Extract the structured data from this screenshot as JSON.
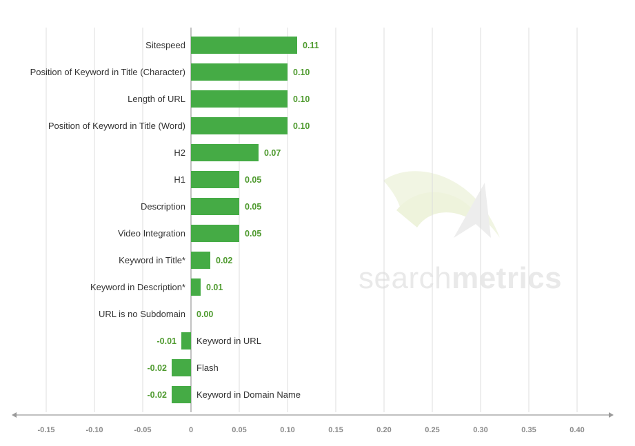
{
  "chart_data": {
    "type": "bar",
    "orientation": "horizontal",
    "categories": [
      "Sitespeed",
      "Position of Keyword in Title (Character)",
      "Length of URL",
      "Position of Keyword in Title (Word)",
      "H2",
      "H1",
      "Description",
      "Video Integration",
      "Keyword in Title*",
      "Keyword in Description*",
      "URL is no Subdomain",
      "Keyword in URL",
      "Flash",
      "Keyword in Domain Name"
    ],
    "values": [
      0.11,
      0.1,
      0.1,
      0.1,
      0.07,
      0.05,
      0.05,
      0.05,
      0.02,
      0.01,
      0.0,
      -0.01,
      -0.02,
      -0.02
    ],
    "value_labels": [
      "0.11",
      "0.10",
      "0.10",
      "0.10",
      "0.07",
      "0.05",
      "0.05",
      "0.05",
      "0.02",
      "0.01",
      "0.00",
      "-0.01",
      "-0.02",
      "-0.02"
    ],
    "xticks": [
      -0.15,
      -0.1,
      -0.05,
      0,
      0.05,
      0.1,
      0.15,
      0.2,
      0.25,
      0.3,
      0.35,
      0.4
    ],
    "xtick_labels": [
      "-0.15",
      "-0.10",
      "-0.05",
      "0",
      "0.05",
      "0.10",
      "0.15",
      "0.20",
      "0.25",
      "0.30",
      "0.35",
      "0.40"
    ],
    "xlim": [
      -0.15,
      0.4
    ],
    "title": "",
    "xlabel": "",
    "ylabel": "",
    "grid": "vertical",
    "bar_color": "#45ab45",
    "value_label_color": "#4e9a2e"
  },
  "watermark": {
    "part1": "search",
    "part2": "metrics"
  }
}
